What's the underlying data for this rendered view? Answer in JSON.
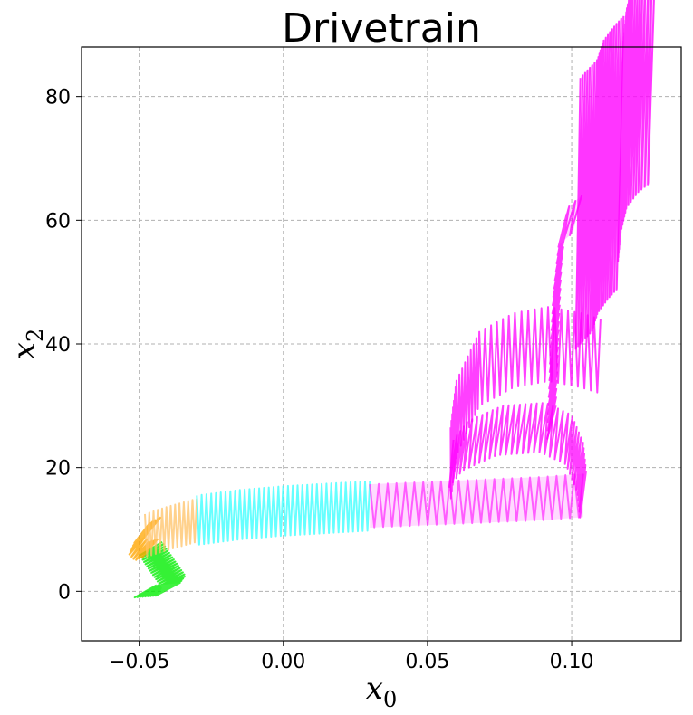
{
  "chart_data": {
    "type": "line",
    "title": "Drivetrain",
    "xlabel": "x",
    "xlabel_sub": "0",
    "ylabel": "x",
    "ylabel_sub": "2",
    "xlim": [
      -0.07,
      0.138
    ],
    "ylim": [
      -8,
      88
    ],
    "xticks": [
      -0.05,
      0.0,
      0.05,
      0.1
    ],
    "xtick_labels": [
      "−0.05",
      "0.00",
      "0.05",
      "0.10"
    ],
    "yticks": [
      0,
      20,
      40,
      60,
      80
    ],
    "ytick_labels": [
      "0",
      "20",
      "40",
      "60",
      "80"
    ],
    "grid": true,
    "grid_style": "dashed",
    "series": [
      {
        "color": "#00ee00",
        "points": [
          [
            -0.048,
            0.0
          ],
          [
            -0.04,
            0.3
          ],
          [
            -0.038,
            1.5
          ],
          [
            -0.041,
            3.5
          ],
          [
            -0.044,
            5.5
          ],
          [
            -0.046,
            7.0
          ]
        ],
        "amplitude": [
          0.004,
          1.0
        ],
        "zig_count": 28,
        "fill": true
      },
      {
        "color": "#ffa500",
        "points": [
          [
            -0.046,
            7.0
          ],
          [
            -0.049,
            6.5
          ],
          [
            -0.051,
            7.5
          ],
          [
            -0.049,
            9.5
          ],
          [
            -0.045,
            10.5
          ]
        ],
        "amplitude": [
          0.0025,
          1.5
        ],
        "zig_count": 14,
        "fill": true
      },
      {
        "color": "#ffc266",
        "points": [
          [
            -0.048,
            9.0
          ],
          [
            -0.04,
            10.2
          ],
          [
            -0.03,
            11.5
          ]
        ],
        "amplitude": [
          0.0,
          3.5
        ],
        "zig_count": 12,
        "fill": false
      },
      {
        "color": "#33ffff",
        "points": [
          [
            -0.03,
            11.5
          ],
          [
            -0.015,
            12.4
          ],
          [
            0.0,
            13.0
          ],
          [
            0.015,
            13.4
          ],
          [
            0.03,
            13.8
          ]
        ],
        "amplitude": [
          0.0,
          4.0
        ],
        "zig_count": 36,
        "fill": false
      },
      {
        "color": "#ff33ff",
        "points": [
          [
            0.03,
            13.8
          ],
          [
            0.05,
            14.2
          ],
          [
            0.07,
            14.6
          ],
          [
            0.09,
            15.0
          ],
          [
            0.104,
            15.5
          ]
        ],
        "amplitude": [
          0.0,
          3.5
        ],
        "zig_count": 24,
        "fill": true
      },
      {
        "color": "#ff00ff",
        "points": [
          [
            0.104,
            15.5
          ],
          [
            0.103,
            20.0
          ],
          [
            0.099,
            24.5
          ],
          [
            0.09,
            26.5
          ],
          [
            0.075,
            26.0
          ],
          [
            0.063,
            23.5
          ],
          [
            0.058,
            20.5
          ]
        ],
        "amplitude": [
          0.001,
          4.0
        ],
        "zig_count": 34,
        "fill": false
      },
      {
        "color": "#ff00ff",
        "points": [
          [
            0.058,
            20.5
          ],
          [
            0.06,
            28.0
          ],
          [
            0.068,
            36.0
          ],
          [
            0.08,
            39.0
          ],
          [
            0.092,
            40.0
          ],
          [
            0.103,
            39.0
          ],
          [
            0.11,
            38.0
          ]
        ],
        "amplitude": [
          0.0,
          6.0
        ],
        "zig_count": 34,
        "fill": false
      },
      {
        "color": "#ff00ff",
        "points": [
          [
            0.093,
            27.0
          ],
          [
            0.094,
            40.0
          ],
          [
            0.095,
            50.0
          ],
          [
            0.097,
            59.0
          ],
          [
            0.102,
            61.0
          ]
        ],
        "amplitude": [
          0.0015,
          3.0
        ],
        "zig_count": 26,
        "fill": true
      },
      {
        "color": "#ff00ff",
        "points": [
          [
            0.102,
            61.0
          ],
          [
            0.108,
            64.0
          ],
          [
            0.11,
            67.0
          ],
          [
            0.114,
            69.5
          ],
          [
            0.117,
            71.0
          ]
        ],
        "amplitude": [
          0.001,
          22.0
        ],
        "zig_count": 22,
        "fill": true
      },
      {
        "color": "#ff00ff",
        "points": [
          [
            0.117,
            71.0
          ],
          [
            0.118,
            76.0
          ],
          [
            0.12,
            80.0
          ],
          [
            0.124,
            82.5
          ],
          [
            0.128,
            84.0
          ]
        ],
        "amplitude": [
          0.001,
          18.0
        ],
        "zig_count": 22,
        "fill": true
      }
    ]
  }
}
